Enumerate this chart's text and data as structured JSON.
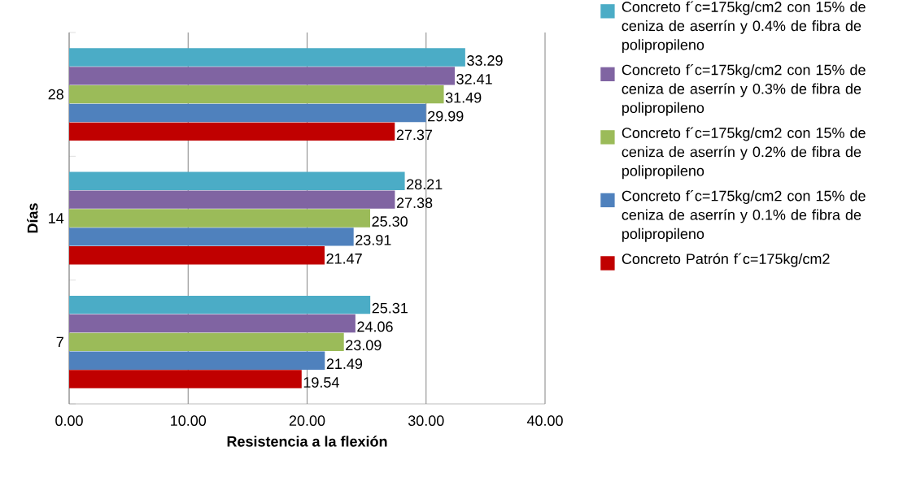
{
  "chart_data": {
    "type": "bar",
    "orientation": "horizontal",
    "xlabel": "Resistencia a la flexión",
    "ylabel": "Días",
    "categories": [
      "28",
      "14",
      "7"
    ],
    "series": [
      {
        "name": "Concreto f´c=175kg/cm2 con 15% de ceniza de aserrín y 0.4% de fibra de polipropileno",
        "color": "#4bacc6",
        "values": [
          33.29,
          28.21,
          25.31
        ],
        "value_labels": [
          "33.29",
          "28.21",
          "25.31"
        ]
      },
      {
        "name": "Concreto f´c=175kg/cm2 con 15% de ceniza de aserrín y 0.3% de fibra de polipropileno",
        "color": "#8064a2",
        "values": [
          32.41,
          27.38,
          24.06
        ],
        "value_labels": [
          "32.41",
          "27.38",
          "24.06"
        ]
      },
      {
        "name": "Concreto f´c=175kg/cm2 con 15% de ceniza de aserrín y 0.2% de fibra de polipropileno",
        "color": "#9bbb59",
        "values": [
          31.49,
          25.3,
          23.09
        ],
        "value_labels": [
          "31.49",
          "25.30",
          "23.09"
        ]
      },
      {
        "name": "Concreto f´c=175kg/cm2 con 15% de ceniza de aserrín y 0.1% de fibra de polipropileno",
        "color": "#4f81bd",
        "values": [
          29.99,
          23.91,
          21.49
        ],
        "value_labels": [
          "29.99",
          "23.91",
          "21.49"
        ]
      },
      {
        "name": "Concreto Patrón f´c=175kg/cm2",
        "color": "#c00000",
        "values": [
          27.37,
          21.47,
          19.54
        ],
        "value_labels": [
          "27.37",
          "21.47",
          "19.54"
        ]
      }
    ],
    "xlim": [
      0,
      40
    ],
    "xticks": [
      {
        "value": 0,
        "label": "0.00"
      },
      {
        "value": 10,
        "label": "10.00"
      },
      {
        "value": 20,
        "label": "20.00"
      },
      {
        "value": 30,
        "label": "30.00"
      },
      {
        "value": 40,
        "label": "40.00"
      }
    ],
    "grid": "x",
    "legend": "right"
  }
}
